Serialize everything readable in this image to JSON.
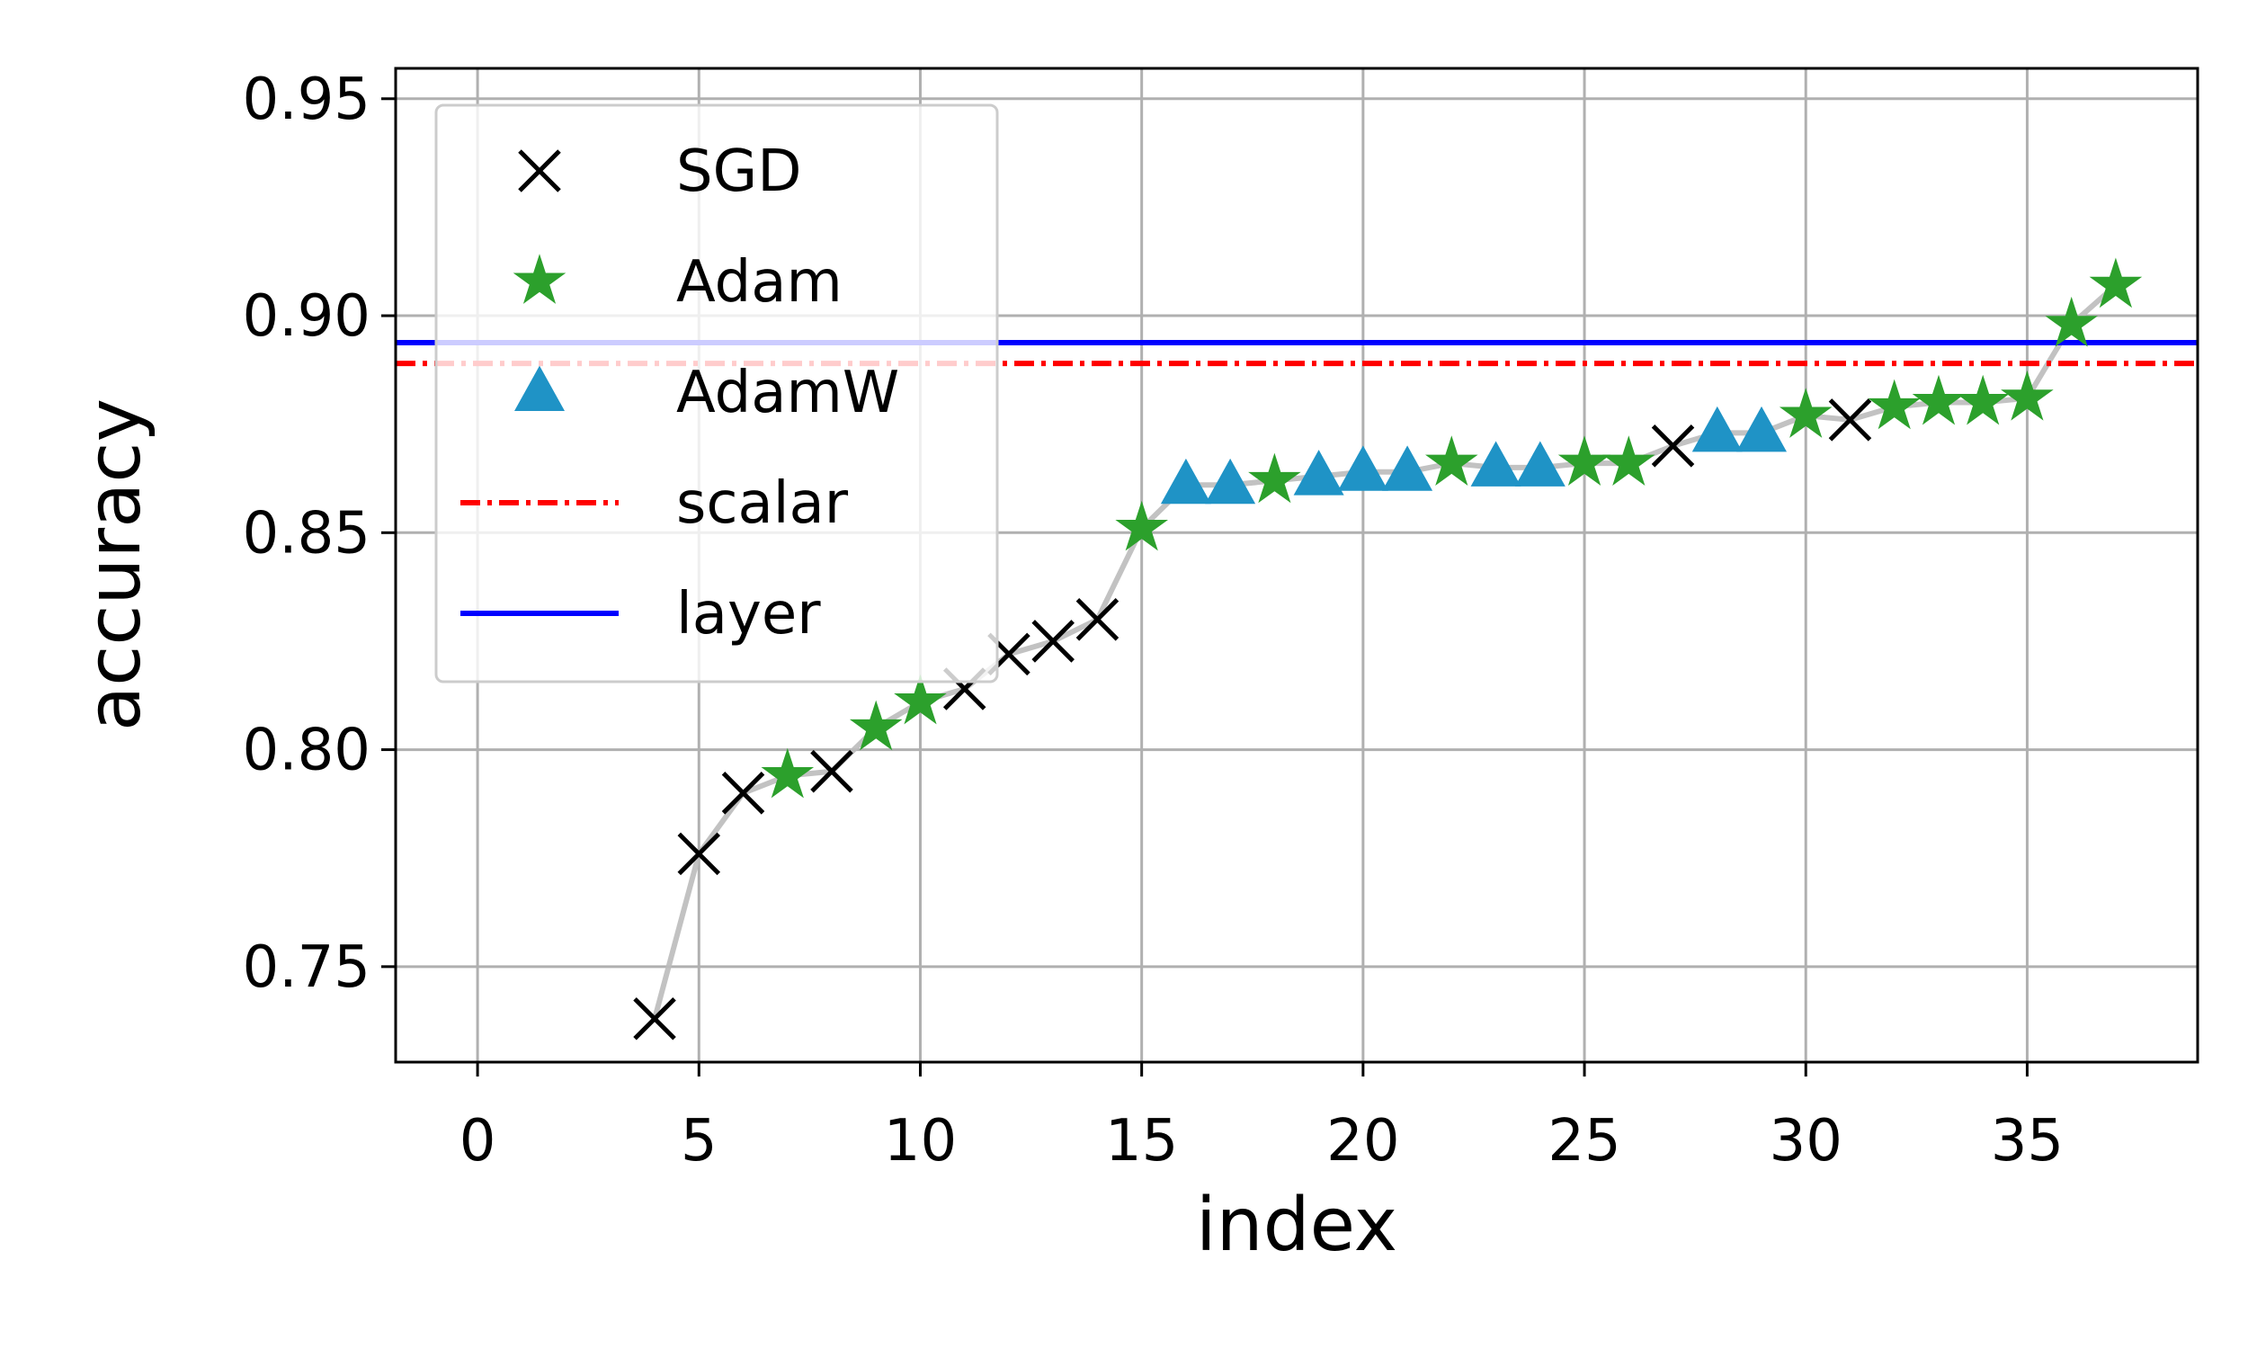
{
  "chart_data": {
    "type": "scatter",
    "xlabel": "index",
    "ylabel": "accuracy",
    "xlim": [
      -1.85,
      38.85
    ],
    "ylim": [
      0.728,
      0.957
    ],
    "xticks": [
      0,
      5,
      10,
      15,
      20,
      25,
      30,
      35
    ],
    "yticks": [
      0.75,
      {
        "value": 0.8,
        "label": "0.80"
      },
      0.85,
      {
        "value": 0.9,
        "label": "0.90"
      },
      0.95
    ],
    "grid": true,
    "legend": "upper left",
    "series": [
      {
        "name": "SGD",
        "color": "#000000",
        "marker": "x",
        "x": [
          4,
          5,
          6,
          8,
          11,
          12,
          13,
          14,
          27,
          31
        ],
        "values": [
          0.738,
          0.776,
          0.79,
          0.795,
          0.814,
          0.822,
          0.825,
          0.83,
          0.87,
          0.876
        ]
      },
      {
        "name": "Adam",
        "color": "#2ca02c",
        "marker": "star",
        "x": [
          7,
          9,
          10,
          15,
          18,
          22,
          25,
          26,
          30,
          32,
          33,
          34,
          35,
          36,
          37
        ],
        "values": [
          0.794,
          0.805,
          0.811,
          0.851,
          0.862,
          0.866,
          0.866,
          0.866,
          0.877,
          0.879,
          0.88,
          0.88,
          0.881,
          0.898,
          0.907
        ]
      },
      {
        "name": "AdamW",
        "color": "#1f93c6",
        "marker": "triangle",
        "x": [
          16,
          17,
          19,
          20,
          21,
          23,
          24,
          28,
          29
        ],
        "values": [
          0.861,
          0.861,
          0.863,
          0.864,
          0.864,
          0.865,
          0.865,
          0.873,
          0.873
        ]
      }
    ],
    "hlines": [
      {
        "name": "scalar",
        "color": "#ff0000",
        "style": "dashdot",
        "value": 0.889
      },
      {
        "name": "layer",
        "color": "#0000ff",
        "style": "solid",
        "value": 0.8938
      }
    ],
    "trend": {
      "color": "#bbbbbb",
      "x": [
        4,
        5,
        6,
        7,
        8,
        9,
        10,
        11,
        12,
        13,
        14,
        15,
        16,
        17,
        18,
        19,
        20,
        21,
        22,
        23,
        24,
        25,
        26,
        27,
        28,
        29,
        30,
        31,
        32,
        33,
        34,
        35,
        36,
        37
      ],
      "values": [
        0.738,
        0.776,
        0.79,
        0.794,
        0.795,
        0.805,
        0.811,
        0.814,
        0.822,
        0.825,
        0.83,
        0.851,
        0.861,
        0.861,
        0.862,
        0.863,
        0.864,
        0.864,
        0.866,
        0.865,
        0.865,
        0.866,
        0.866,
        0.87,
        0.873,
        0.873,
        0.877,
        0.876,
        0.879,
        0.88,
        0.88,
        0.881,
        0.898,
        0.907
      ]
    }
  }
}
